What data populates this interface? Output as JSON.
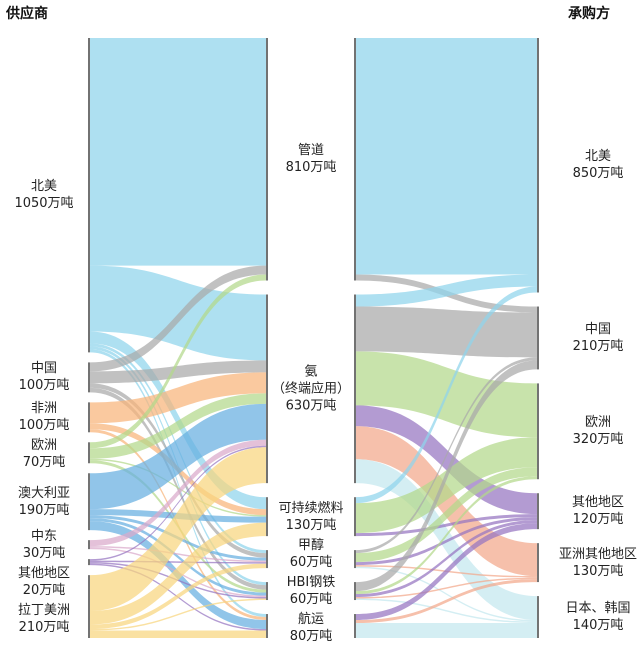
{
  "titles": {
    "suppliers": "供应商",
    "buyers": "承购方"
  },
  "columns": {
    "suppliers": [
      {
        "id": "s_na",
        "name": "北美",
        "value_label": "1050万吨",
        "value": 1050,
        "color": "#8fd4ec"
      },
      {
        "id": "s_cn",
        "name": "中国",
        "value_label": "100万吨",
        "value": 100,
        "color": "#a9a9a9"
      },
      {
        "id": "s_af",
        "name": "非洲",
        "value_label": "100万吨",
        "value": 100,
        "color": "#f8b47a"
      },
      {
        "id": "s_eu",
        "name": "欧洲",
        "value_label": "70万吨",
        "value": 70,
        "color": "#b3d88a"
      },
      {
        "id": "s_au",
        "name": "澳大利亚",
        "value_label": "190万吨",
        "value": 190,
        "color": "#67aee0"
      },
      {
        "id": "s_me",
        "name": "中东",
        "value_label": "30万吨",
        "value": 30,
        "color": "#d9a9cb"
      },
      {
        "id": "s_ot",
        "name": "其他地区",
        "value_label": "20万吨",
        "value": 20,
        "color": "#9575c0"
      },
      {
        "id": "s_la",
        "name": "拉丁美洲",
        "value_label": "210万吨",
        "value": 210,
        "color": "#f8d67e"
      }
    ],
    "uses": [
      {
        "id": "u_pipe",
        "name": "管道",
        "value_label": "810万吨",
        "value": 810
      },
      {
        "id": "u_nh3",
        "name": "氨",
        "sub": "（终端应用）",
        "value_label": "630万吨",
        "value": 630
      },
      {
        "id": "u_saf",
        "name": "可持续燃料",
        "value_label": "130万吨",
        "value": 130
      },
      {
        "id": "u_meoh",
        "name": "甲醇",
        "value_label": "60万吨",
        "value": 60
      },
      {
        "id": "u_hbi",
        "name": "HBI钢铁",
        "value_label": "60万吨",
        "value": 60
      },
      {
        "id": "u_ship",
        "name": "航运",
        "value_label": "80万吨",
        "value": 80
      }
    ],
    "buyers": [
      {
        "id": "b_na",
        "name": "北美",
        "value_label": "850万吨",
        "value": 850,
        "color": "#8fd4ec"
      },
      {
        "id": "b_cn",
        "name": "中国",
        "value_label": "210万吨",
        "value": 210,
        "color": "#a9a9a9"
      },
      {
        "id": "b_eu",
        "name": "欧洲",
        "value_label": "320万吨",
        "value": 320,
        "color": "#b3d88a"
      },
      {
        "id": "b_ot",
        "name": "其他地区",
        "value_label": "120万吨",
        "value": 120,
        "color": "#9575c0"
      },
      {
        "id": "b_as",
        "name": "亚洲其他地区",
        "value_label": "130万吨",
        "value": 130,
        "color": "#f3a88a"
      },
      {
        "id": "b_jk",
        "name": "日本、韩国",
        "value_label": "140万吨",
        "value": 140,
        "color": "#c4e8ef"
      }
    ]
  },
  "flows_supply": [
    [
      "s_na",
      "u_pipe",
      760
    ],
    [
      "s_na",
      "u_nh3",
      220
    ],
    [
      "s_na",
      "u_saf",
      40
    ],
    [
      "s_na",
      "u_meoh",
      10
    ],
    [
      "s_na",
      "u_hbi",
      10
    ],
    [
      "s_na",
      "u_ship",
      10
    ],
    [
      "s_cn",
      "u_pipe",
      30
    ],
    [
      "s_cn",
      "u_nh3",
      40
    ],
    [
      "s_cn",
      "u_meoh",
      15
    ],
    [
      "s_cn",
      "u_hbi",
      15
    ],
    [
      "s_af",
      "u_nh3",
      70
    ],
    [
      "s_af",
      "u_saf",
      20
    ],
    [
      "s_af",
      "u_ship",
      10
    ],
    [
      "s_eu",
      "u_pipe",
      20
    ],
    [
      "s_eu",
      "u_nh3",
      35
    ],
    [
      "s_eu",
      "u_saf",
      5
    ],
    [
      "s_eu",
      "u_hbi",
      10
    ],
    [
      "s_au",
      "u_nh3",
      120
    ],
    [
      "s_au",
      "u_saf",
      20
    ],
    [
      "s_au",
      "u_meoh",
      10
    ],
    [
      "s_au",
      "u_hbi",
      10
    ],
    [
      "s_au",
      "u_ship",
      30
    ],
    [
      "s_me",
      "u_nh3",
      20
    ],
    [
      "s_me",
      "u_meoh",
      5
    ],
    [
      "s_me",
      "u_hbi",
      5
    ],
    [
      "s_ot",
      "u_nh3",
      5
    ],
    [
      "s_ot",
      "u_meoh",
      5
    ],
    [
      "s_ot",
      "u_hbi",
      5
    ],
    [
      "s_ot",
      "u_ship",
      5
    ],
    [
      "s_la",
      "u_nh3",
      120
    ],
    [
      "s_la",
      "u_saf",
      45
    ],
    [
      "s_la",
      "u_meoh",
      15
    ],
    [
      "s_la",
      "u_hbi",
      5
    ],
    [
      "s_la",
      "u_ship",
      25
    ]
  ],
  "flows_offtake": [
    [
      "u_pipe",
      "b_na",
      790
    ],
    [
      "u_pipe",
      "b_cn",
      20
    ],
    [
      "u_nh3",
      "b_na",
      40
    ],
    [
      "u_nh3",
      "b_cn",
      150
    ],
    [
      "u_nh3",
      "b_eu",
      180
    ],
    [
      "u_nh3",
      "b_ot",
      70
    ],
    [
      "u_nh3",
      "b_as",
      110
    ],
    [
      "u_nh3",
      "b_jk",
      80
    ],
    [
      "u_saf",
      "b_na",
      20
    ],
    [
      "u_saf",
      "b_eu",
      100
    ],
    [
      "u_saf",
      "b_ot",
      10
    ],
    [
      "u_meoh",
      "b_cn",
      10
    ],
    [
      "u_meoh",
      "b_eu",
      30
    ],
    [
      "u_meoh",
      "b_ot",
      10
    ],
    [
      "u_meoh",
      "b_as",
      5
    ],
    [
      "u_meoh",
      "b_jk",
      5
    ],
    [
      "u_hbi",
      "b_cn",
      30
    ],
    [
      "u_hbi",
      "b_eu",
      10
    ],
    [
      "u_hbi",
      "b_ot",
      10
    ],
    [
      "u_hbi",
      "b_as",
      5
    ],
    [
      "u_hbi",
      "b_jk",
      5
    ],
    [
      "u_ship",
      "b_ot",
      20
    ],
    [
      "u_ship",
      "b_as",
      10
    ],
    [
      "u_ship",
      "b_jk",
      50
    ]
  ]
}
